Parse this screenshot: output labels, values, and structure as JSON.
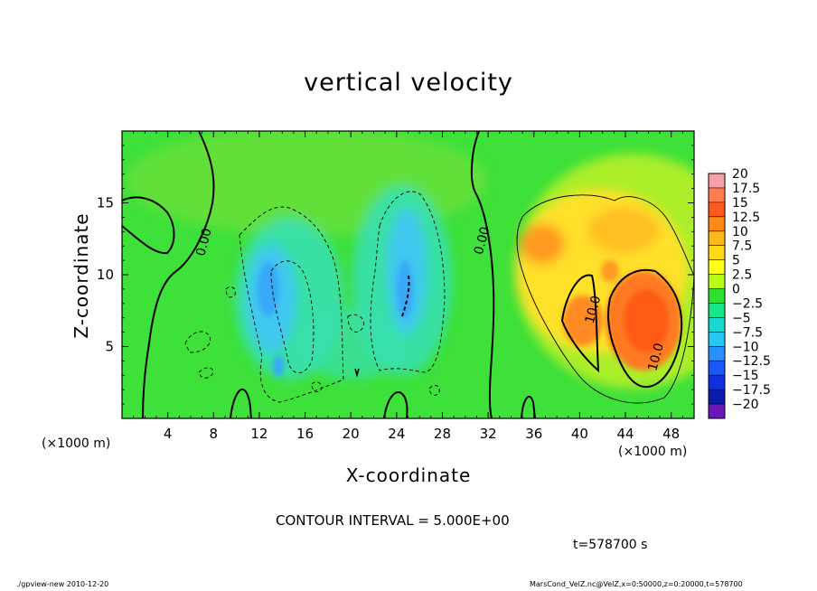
{
  "chart_data": {
    "type": "heatmap",
    "title": "vertical velocity",
    "xlabel": "X-coordinate",
    "ylabel": "Z-coordinate",
    "x_unit": "(×1000 m)",
    "xlim": [
      0,
      50
    ],
    "ylim": [
      0,
      20
    ],
    "x_ticks": [
      4,
      8,
      12,
      16,
      20,
      24,
      28,
      32,
      36,
      40,
      44,
      48
    ],
    "y_ticks": [
      5,
      10,
      15
    ],
    "colorbar": {
      "levels": [
        20,
        17.5,
        15,
        12.5,
        10,
        7.5,
        5,
        2.5,
        0,
        -2.5,
        -5,
        -7.5,
        -10,
        -12.5,
        -15,
        -17.5,
        -20
      ],
      "labels": [
        "20",
        "17.5",
        "15",
        "12.5",
        "10",
        "7.5",
        "5",
        "2.5",
        "0",
        "−2.5",
        "−5",
        "−7.5",
        "−10",
        "−12.5",
        "−15",
        "−17.5",
        "−20"
      ],
      "colors": [
        "#f7a0a8",
        "#ff7e50",
        "#ff5a1e",
        "#ff8a18",
        "#ffb81a",
        "#ffd81a",
        "#ffff1a",
        "#b8ff18",
        "#30e030",
        "#18e58a",
        "#18d8d0",
        "#28c6f5",
        "#2890ff",
        "#1858f5",
        "#1030e0",
        "#0a1aaa",
        "#6a18b8"
      ]
    },
    "contour_interval_text": "CONTOUR INTERVAL = 5.000E+00",
    "contour_labels": [
      {
        "text": "0.00",
        "x": 7.5,
        "z": 12.2
      },
      {
        "text": "0.00",
        "x": 31.8,
        "z": 12.3
      },
      {
        "text": "10.0",
        "x": 41.5,
        "z": 7.5
      },
      {
        "text": "10.0",
        "x": 47.0,
        "z": 4.2
      }
    ],
    "features": [
      {
        "kind": "updraft",
        "x": 45.5,
        "z": 6.2,
        "value": 14
      },
      {
        "kind": "updraft",
        "x": 41.0,
        "z": 7.0,
        "value": 12
      },
      {
        "kind": "updraft",
        "x": 38.5,
        "z": 11.5,
        "value": 8
      },
      {
        "kind": "downdraft",
        "x": 13.5,
        "z": 8.8,
        "value": -9
      },
      {
        "kind": "downdraft",
        "x": 25.0,
        "z": 9.5,
        "value": -9
      },
      {
        "kind": "downdraft",
        "x": 20.0,
        "z": 5.5,
        "value": -5
      }
    ]
  },
  "time_label": "t=578700 s",
  "footer": {
    "left": "./gpview-new  2010-12-20",
    "right": "MarsCond_VelZ.nc@VelZ,x=0:50000,z=0:20000,t=578700"
  }
}
